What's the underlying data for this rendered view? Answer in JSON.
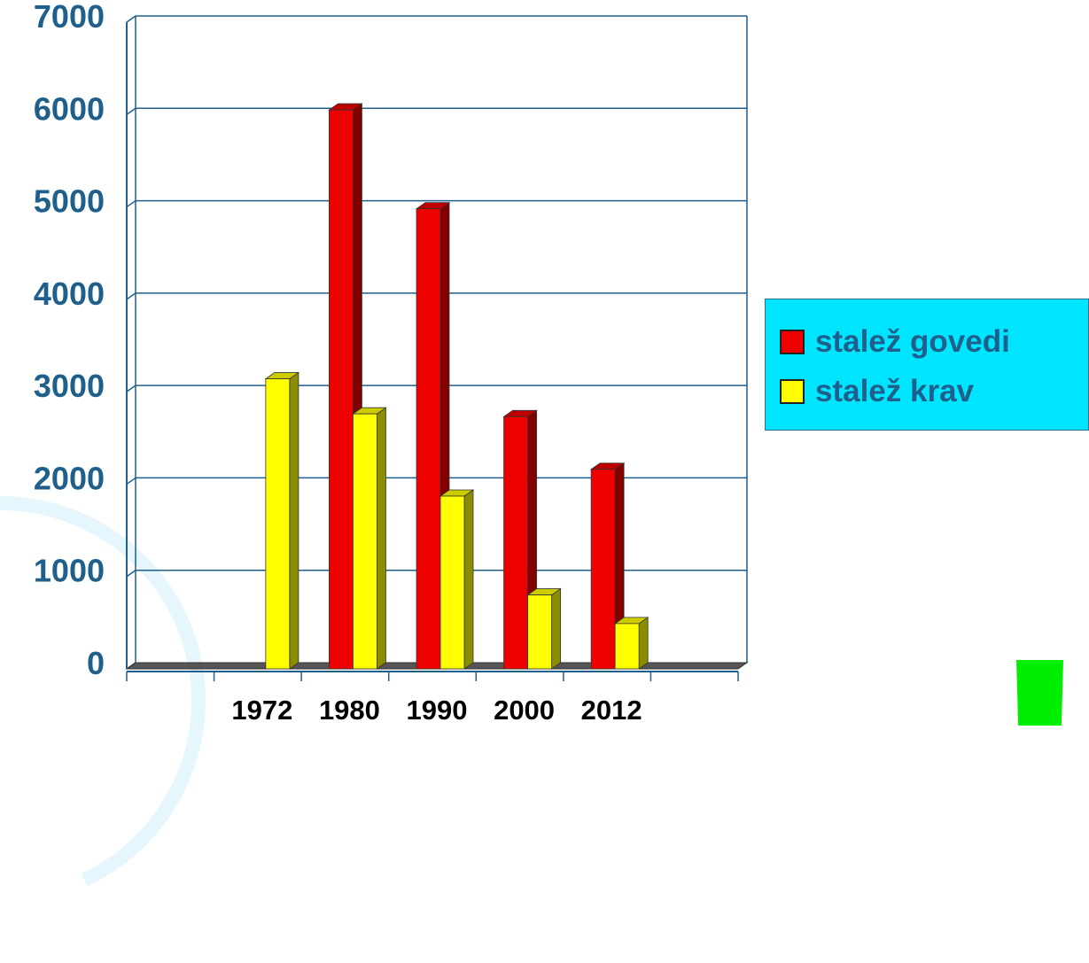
{
  "chart_data": {
    "type": "bar",
    "title": "",
    "xlabel": "",
    "ylabel": "",
    "categories": [
      "",
      "1972",
      "1980",
      "1990",
      "2000",
      "2012",
      ""
    ],
    "series": [
      {
        "name": "stalež govedi",
        "color": "#ee0000",
        "values": [
          null,
          null,
          6050,
          4980,
          2730,
          2160,
          null
        ]
      },
      {
        "name": "stalež krav",
        "color": "#ffff00",
        "values": [
          null,
          3140,
          2760,
          1870,
          800,
          490,
          null
        ]
      }
    ],
    "ylim": [
      0,
      7000
    ],
    "yticks": [
      0,
      1000,
      2000,
      3000,
      4000,
      5000,
      6000,
      7000
    ],
    "grid": true,
    "legend_position": "right",
    "colors": {
      "axis_text": "#1f5f8b",
      "grid": "#1f5f8b",
      "legend_background": "#00e5ff",
      "floor": "#555555"
    }
  }
}
